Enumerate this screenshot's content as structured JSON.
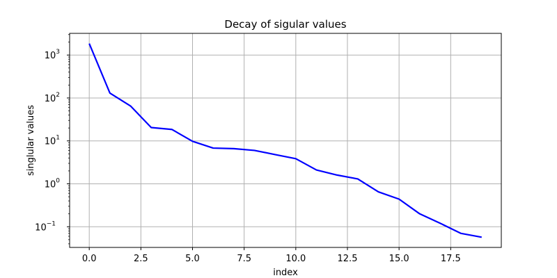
{
  "chart_data": {
    "type": "line",
    "title": "Decay of sigular values",
    "xlabel": "index",
    "ylabel": "singlular values",
    "y_scale": "log",
    "grid": true,
    "x_ticks": [
      0,
      2.5,
      5,
      7.5,
      10,
      12.5,
      15,
      17.5
    ],
    "x_tick_labels": [
      "0.0",
      "2.5",
      "5.0",
      "7.5",
      "10.0",
      "12.5",
      "15.0",
      "17.5"
    ],
    "y_tick_exponents": [
      -1,
      0,
      1,
      2,
      3
    ],
    "y_tick_base": "10",
    "xlim": [
      -0.95,
      19.95
    ],
    "ylim": [
      0.033,
      3200
    ],
    "series": [
      {
        "color": "#0000ff",
        "x": [
          0,
          1,
          2,
          3,
          4,
          5,
          6,
          7,
          8,
          9,
          10,
          11,
          12,
          13,
          14,
          15,
          16,
          17,
          18,
          19
        ],
        "values": [
          1850,
          130,
          65,
          20.5,
          18.5,
          9.8,
          6.8,
          6.6,
          6.0,
          4.8,
          3.85,
          2.1,
          1.6,
          1.3,
          0.65,
          0.44,
          0.2,
          0.12,
          0.07,
          0.057
        ]
      }
    ]
  }
}
